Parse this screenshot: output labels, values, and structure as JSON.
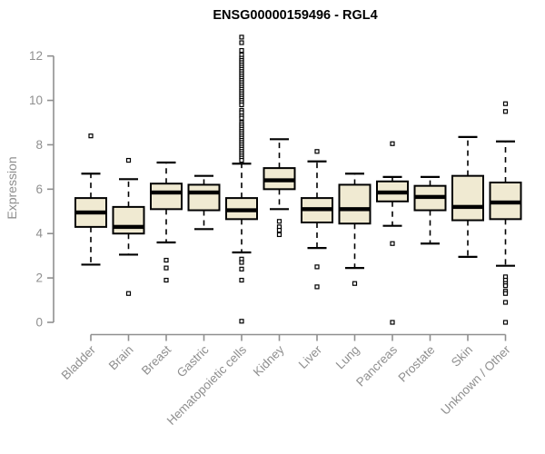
{
  "chart_data": {
    "type": "boxplot",
    "title": "ENSG00000159496 - RGL4",
    "ylabel": "Expression",
    "xlabel": "",
    "ylim": [
      0,
      12.9
    ],
    "yticks": [
      0,
      2,
      4,
      6,
      8,
      10,
      12
    ],
    "grid": false,
    "legend": "none",
    "categories": [
      "Bladder",
      "Brain",
      "Breast",
      "Gastric",
      "Hematopoietic cells",
      "Kidney",
      "Liver",
      "Lung",
      "Pancreas",
      "Prostate",
      "Skin",
      "Unknown / Other"
    ],
    "series": [
      {
        "name": "Bladder",
        "whisker_low": 2.6,
        "q1": 4.3,
        "median": 4.95,
        "q3": 5.6,
        "whisker_high": 6.7,
        "outliers": [
          8.4
        ]
      },
      {
        "name": "Brain",
        "whisker_low": 3.05,
        "q1": 4.0,
        "median": 4.3,
        "q3": 5.2,
        "whisker_high": 6.45,
        "outliers": [
          7.3,
          1.3
        ]
      },
      {
        "name": "Breast",
        "whisker_low": 3.6,
        "q1": 5.1,
        "median": 5.85,
        "q3": 6.25,
        "whisker_high": 7.2,
        "outliers": [
          2.8,
          2.45,
          1.9
        ]
      },
      {
        "name": "Gastric",
        "whisker_low": 4.2,
        "q1": 5.05,
        "median": 5.85,
        "q3": 6.2,
        "whisker_high": 6.6,
        "outliers": []
      },
      {
        "name": "Hematopoietic cells",
        "whisker_low": 3.15,
        "q1": 4.65,
        "median": 5.05,
        "q3": 5.6,
        "whisker_high": 7.15,
        "outliers": [
          12.85,
          12.6,
          12.25,
          12.05,
          11.9,
          11.8,
          11.7,
          11.6,
          11.5,
          11.4,
          11.3,
          11.2,
          11.1,
          11.0,
          10.9,
          10.8,
          10.7,
          10.6,
          10.5,
          10.4,
          10.3,
          10.2,
          10.1,
          10.0,
          9.9,
          9.8,
          9.55,
          9.45,
          9.3,
          9.2,
          9.0,
          8.9,
          8.8,
          8.7,
          8.6,
          8.5,
          8.4,
          8.3,
          8.2,
          8.1,
          8.0,
          7.9,
          7.8,
          7.7,
          7.6,
          7.5,
          7.4,
          7.3,
          2.85,
          2.7,
          2.4,
          1.9,
          0.05
        ]
      },
      {
        "name": "Kidney",
        "whisker_low": 5.1,
        "q1": 6.0,
        "median": 6.4,
        "q3": 6.95,
        "whisker_high": 8.25,
        "outliers": [
          4.55,
          4.3,
          4.15,
          3.95
        ]
      },
      {
        "name": "Liver",
        "whisker_low": 3.35,
        "q1": 4.5,
        "median": 5.1,
        "q3": 5.6,
        "whisker_high": 7.25,
        "outliers": [
          7.7,
          2.5,
          1.6
        ]
      },
      {
        "name": "Lung",
        "whisker_low": 2.45,
        "q1": 4.45,
        "median": 5.1,
        "q3": 6.2,
        "whisker_high": 6.7,
        "outliers": [
          1.75
        ]
      },
      {
        "name": "Pancreas",
        "whisker_low": 4.35,
        "q1": 5.45,
        "median": 5.85,
        "q3": 6.35,
        "whisker_high": 6.55,
        "outliers": [
          8.05,
          3.55,
          0
        ]
      },
      {
        "name": "Prostate",
        "whisker_low": 3.55,
        "q1": 5.05,
        "median": 5.65,
        "q3": 6.15,
        "whisker_high": 6.55,
        "outliers": []
      },
      {
        "name": "Skin",
        "whisker_low": 2.95,
        "q1": 4.6,
        "median": 5.2,
        "q3": 6.6,
        "whisker_high": 8.35,
        "outliers": []
      },
      {
        "name": "Unknown / Other",
        "whisker_low": 2.55,
        "q1": 4.65,
        "median": 5.4,
        "q3": 6.3,
        "whisker_high": 8.15,
        "outliers": [
          9.85,
          9.5,
          2.05,
          1.9,
          1.75,
          1.65,
          1.4,
          1.3,
          0.9,
          0
        ]
      }
    ],
    "colors": {
      "box_fill": "#f0ead2",
      "box_stroke": "#000000",
      "median": "#000000",
      "axis": "#8f8f8f",
      "tick_label": "#8f8f8f",
      "title": "#000000",
      "background": "#ffffff"
    }
  }
}
